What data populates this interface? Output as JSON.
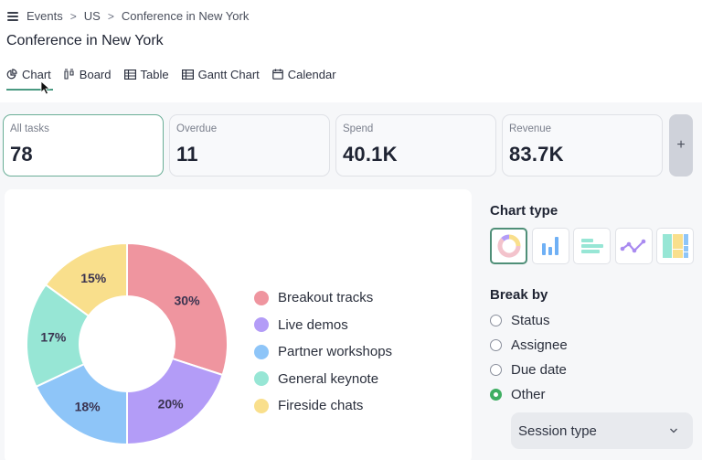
{
  "breadcrumb": {
    "items": [
      "Events",
      "US",
      "Conference in New York"
    ],
    "separator": ">"
  },
  "page": {
    "title": "Conference in New York"
  },
  "tabs": [
    {
      "label": "Chart",
      "icon": "pie-chart-icon",
      "active": true
    },
    {
      "label": "Board",
      "icon": "board-icon",
      "active": false
    },
    {
      "label": "Table",
      "icon": "table-icon",
      "active": false
    },
    {
      "label": "Gantt Chart",
      "icon": "gantt-icon",
      "active": false
    },
    {
      "label": "Calendar",
      "icon": "calendar-icon",
      "active": false
    }
  ],
  "cards": [
    {
      "label": "All tasks",
      "value": "78",
      "active": true
    },
    {
      "label": "Overdue",
      "value": "11",
      "active": false
    },
    {
      "label": "Spend",
      "value": "40.1K",
      "active": false
    },
    {
      "label": "Revenue",
      "value": "83.7K",
      "active": false
    }
  ],
  "add_card_label": "+",
  "chart_data": {
    "type": "pie",
    "subtype": "donut",
    "title": "",
    "categories": [
      "Breakout tracks",
      "Live demos",
      "Partner workshops",
      "General keynote",
      "Fireside chats"
    ],
    "values": [
      30,
      20,
      18,
      17,
      15
    ],
    "labels": [
      "30%",
      "20%",
      "18%",
      "17%",
      "15%"
    ],
    "colors": [
      "#ef959f",
      "#b39cf7",
      "#8ec5f8",
      "#97e6d5",
      "#f9df8c"
    ],
    "legend_position": "right",
    "unit": "%"
  },
  "side_panel": {
    "chart_type_title": "Chart type",
    "chart_types": [
      {
        "name": "donut",
        "icon": "donut-chart-icon",
        "active": true
      },
      {
        "name": "bar",
        "icon": "bar-chart-icon",
        "active": false
      },
      {
        "name": "horizontal-bar",
        "icon": "horizontal-bar-chart-icon",
        "active": false
      },
      {
        "name": "line",
        "icon": "line-chart-icon",
        "active": false
      },
      {
        "name": "treemap",
        "icon": "treemap-chart-icon",
        "active": false
      }
    ],
    "break_by_title": "Break by",
    "break_by_options": [
      {
        "label": "Status",
        "checked": false
      },
      {
        "label": "Assignee",
        "checked": false
      },
      {
        "label": "Due date",
        "checked": false
      },
      {
        "label": "Other",
        "checked": true
      }
    ],
    "other_select": {
      "value": "Session type"
    }
  },
  "colors": {
    "accent": "#4a9a82",
    "radio_checked": "#3fae62",
    "active_card_border": "#6aae97"
  }
}
